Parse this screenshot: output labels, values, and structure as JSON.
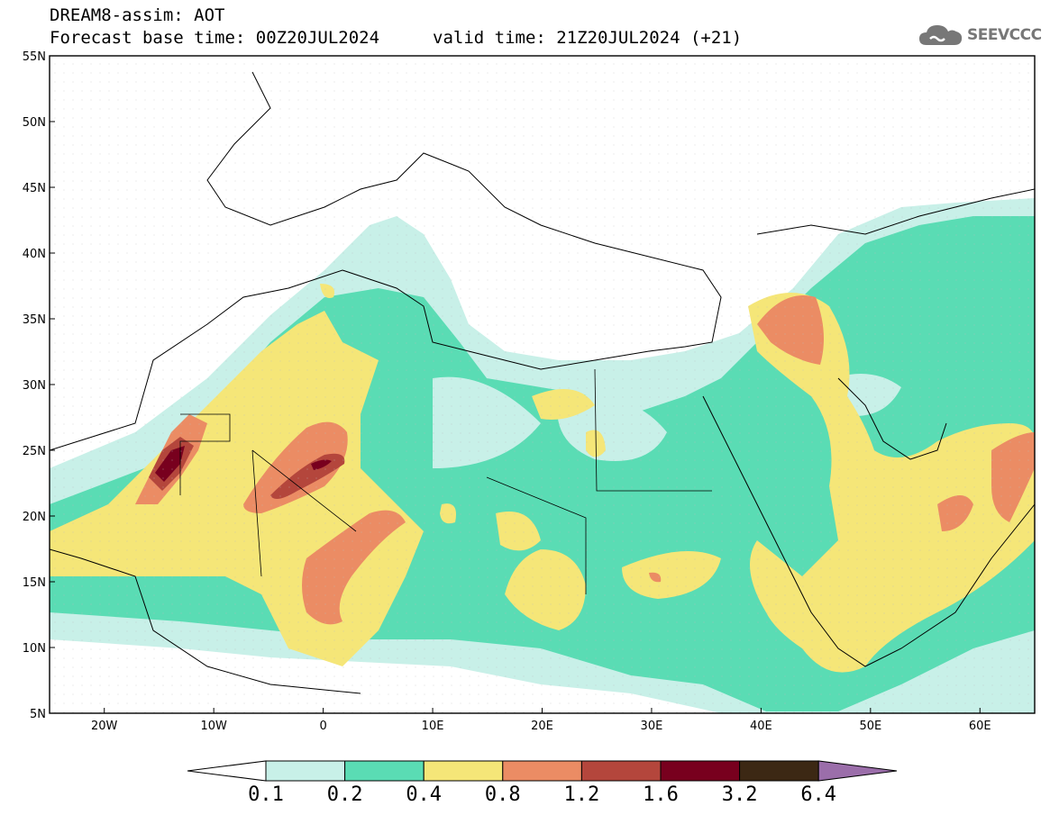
{
  "header": {
    "title": "DREAM8-assim: AOT",
    "base_time": "Forecast base time: 00Z20JUL2024",
    "valid_time": "valid time: 21Z20JUL2024 (+21)"
  },
  "logo": {
    "text": "SEEVCCC",
    "icon": "cloud-icon"
  },
  "map": {
    "variable": "AOT",
    "lat_range": [
      5,
      55
    ],
    "lon_range": [
      -25,
      65
    ],
    "lat_ticks": [
      "5N",
      "10N",
      "15N",
      "20N",
      "25N",
      "30N",
      "35N",
      "40N",
      "45N",
      "50N",
      "55N"
    ],
    "lon_ticks": [
      "20W",
      "10W",
      "0",
      "10E",
      "20E",
      "30E",
      "40E",
      "50E",
      "60E"
    ]
  },
  "colorbar": {
    "levels": [
      "0.1",
      "0.2",
      "0.4",
      "0.8",
      "1.2",
      "1.6",
      "3.2",
      "6.4"
    ],
    "colors": [
      "#ffffff",
      "#c8f0e8",
      "#5adcb4",
      "#f5e678",
      "#eb8c64",
      "#b4463c",
      "#78001e",
      "#3c2814",
      "#9b6eaa"
    ]
  }
}
